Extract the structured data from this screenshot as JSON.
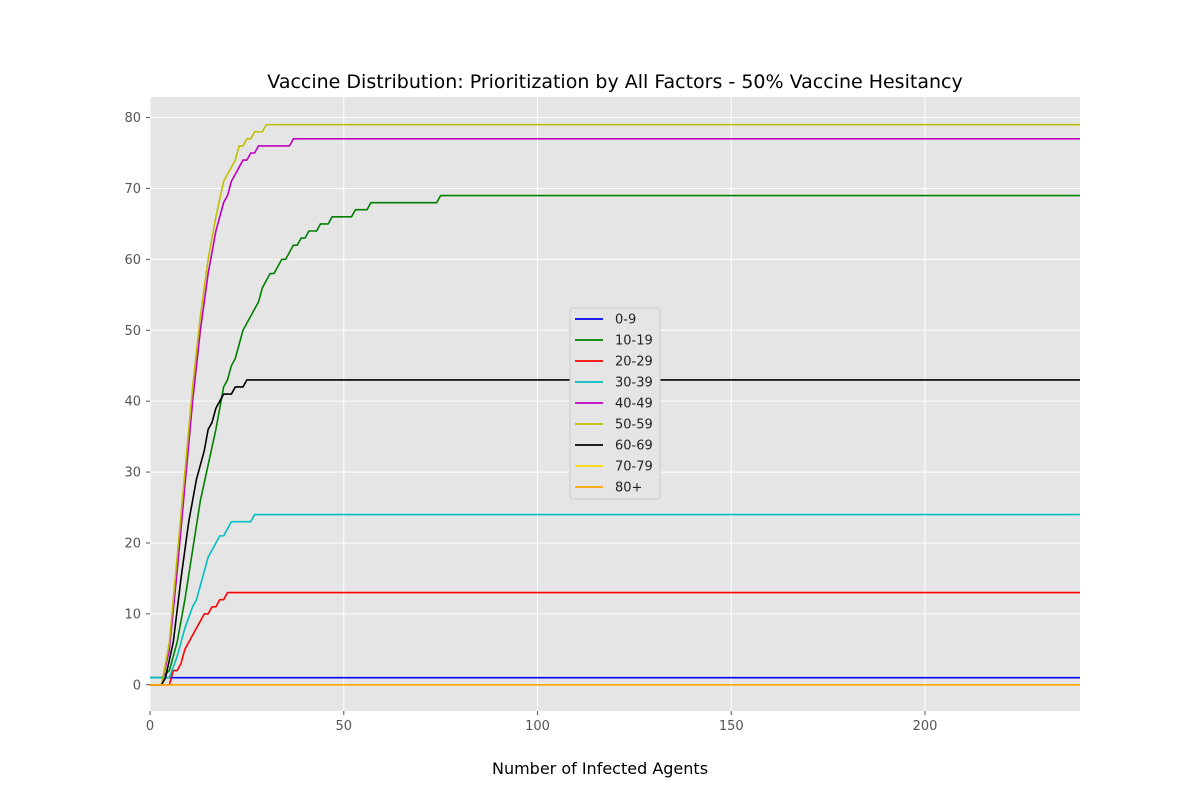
{
  "chart_data": {
    "type": "line",
    "title": "Vaccine Distribution: Prioritization by All Factors - 50% Vaccine Hesitancy",
    "xlabel": "Number of Infected Agents",
    "ylabel": "",
    "xlim": [
      0,
      240
    ],
    "ylim": [
      -3.7,
      82.9
    ],
    "xticks": [
      0,
      50,
      100,
      150,
      200
    ],
    "yticks": [
      0,
      10,
      20,
      30,
      40,
      50,
      60,
      70,
      80
    ],
    "grid": true,
    "legend_position": "center",
    "series": [
      {
        "name": "0-9",
        "color": "#0000ff",
        "points": [
          [
            0,
            1
          ],
          [
            240,
            1
          ]
        ]
      },
      {
        "name": "10-19",
        "color": "#008000",
        "points": [
          [
            0,
            1
          ],
          [
            3,
            1
          ],
          [
            5,
            2
          ],
          [
            7,
            6
          ],
          [
            9,
            12
          ],
          [
            11,
            19
          ],
          [
            13,
            26
          ],
          [
            15,
            31
          ],
          [
            17,
            36
          ],
          [
            19,
            42
          ],
          [
            20,
            43
          ],
          [
            21,
            45
          ],
          [
            22,
            46
          ],
          [
            24,
            50
          ],
          [
            26,
            52
          ],
          [
            28,
            54
          ],
          [
            29,
            56
          ],
          [
            31,
            58
          ],
          [
            32,
            58
          ],
          [
            34,
            60
          ],
          [
            35,
            60
          ],
          [
            36,
            61
          ],
          [
            37,
            62
          ],
          [
            38,
            62
          ],
          [
            39,
            63
          ],
          [
            40,
            63
          ],
          [
            41,
            64
          ],
          [
            43,
            64
          ],
          [
            44,
            65
          ],
          [
            46,
            65
          ],
          [
            47,
            66
          ],
          [
            52,
            66
          ],
          [
            53,
            67
          ],
          [
            56,
            67
          ],
          [
            57,
            68
          ],
          [
            74,
            68
          ],
          [
            75,
            69
          ],
          [
            240,
            69
          ]
        ]
      },
      {
        "name": "20-29",
        "color": "#ff0000",
        "points": [
          [
            0,
            0
          ],
          [
            5,
            0
          ],
          [
            6,
            2
          ],
          [
            7,
            2
          ],
          [
            8,
            3
          ],
          [
            9,
            5
          ],
          [
            11,
            7
          ],
          [
            13,
            9
          ],
          [
            14,
            10
          ],
          [
            15,
            10
          ],
          [
            16,
            11
          ],
          [
            17,
            11
          ],
          [
            18,
            12
          ],
          [
            19,
            12
          ],
          [
            20,
            13
          ],
          [
            240,
            13
          ]
        ]
      },
      {
        "name": "30-39",
        "color": "#00bfbf",
        "points": [
          [
            0,
            1
          ],
          [
            5,
            1
          ],
          [
            7,
            4
          ],
          [
            9,
            8
          ],
          [
            11,
            11
          ],
          [
            12,
            12
          ],
          [
            13,
            14
          ],
          [
            15,
            18
          ],
          [
            17,
            20
          ],
          [
            18,
            21
          ],
          [
            19,
            21
          ],
          [
            21,
            23
          ],
          [
            26,
            23
          ],
          [
            27,
            24
          ],
          [
            240,
            24
          ]
        ]
      },
      {
        "name": "40-49",
        "color": "#bf00bf",
        "points": [
          [
            0,
            0
          ],
          [
            3,
            0
          ],
          [
            5,
            5
          ],
          [
            7,
            16
          ],
          [
            9,
            28
          ],
          [
            11,
            40
          ],
          [
            13,
            50
          ],
          [
            15,
            58
          ],
          [
            17,
            64
          ],
          [
            19,
            68
          ],
          [
            20,
            69
          ],
          [
            21,
            71
          ],
          [
            23,
            73
          ],
          [
            24,
            74
          ],
          [
            25,
            74
          ],
          [
            26,
            75
          ],
          [
            27,
            75
          ],
          [
            28,
            76
          ],
          [
            36,
            76
          ],
          [
            37,
            77
          ],
          [
            240,
            77
          ]
        ]
      },
      {
        "name": "50-59",
        "color": "#bfbf00",
        "points": [
          [
            0,
            0
          ],
          [
            3,
            0
          ],
          [
            5,
            6
          ],
          [
            7,
            18
          ],
          [
            9,
            30
          ],
          [
            11,
            42
          ],
          [
            13,
            52
          ],
          [
            15,
            60
          ],
          [
            17,
            66
          ],
          [
            19,
            71
          ],
          [
            20,
            72
          ],
          [
            22,
            74
          ],
          [
            23,
            76
          ],
          [
            24,
            76
          ],
          [
            25,
            77
          ],
          [
            26,
            77
          ],
          [
            27,
            78
          ],
          [
            29,
            78
          ],
          [
            30,
            79
          ],
          [
            240,
            79
          ]
        ]
      },
      {
        "name": "60-69",
        "color": "#000000",
        "points": [
          [
            0,
            0
          ],
          [
            3,
            0
          ],
          [
            4,
            1
          ],
          [
            6,
            6
          ],
          [
            8,
            15
          ],
          [
            10,
            23
          ],
          [
            12,
            29
          ],
          [
            14,
            33
          ],
          [
            15,
            36
          ],
          [
            16,
            37
          ],
          [
            17,
            39
          ],
          [
            19,
            41
          ],
          [
            21,
            41
          ],
          [
            22,
            42
          ],
          [
            24,
            42
          ],
          [
            25,
            43
          ],
          [
            240,
            43
          ]
        ]
      },
      {
        "name": "70-79",
        "color": "#ffd700",
        "points": [
          [
            0,
            0
          ],
          [
            240,
            0
          ]
        ]
      },
      {
        "name": "80+",
        "color": "#ffa500",
        "points": [
          [
            0,
            0
          ],
          [
            240,
            0
          ]
        ]
      }
    ]
  },
  "colors": {
    "plot_background": "#e5e5e5",
    "grid": "#ffffff",
    "legend_background": "#e5e5e5",
    "legend_border": "#cccccc"
  }
}
